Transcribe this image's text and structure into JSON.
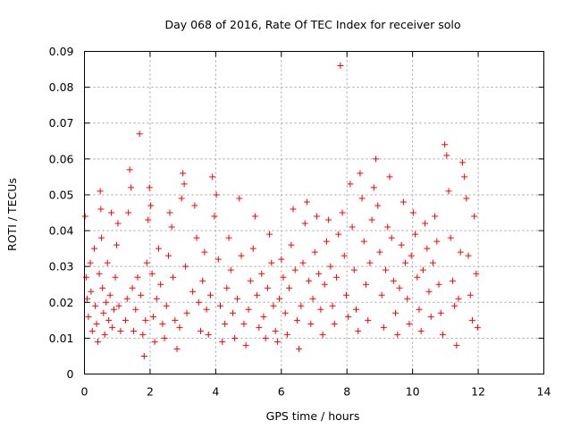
{
  "chart_data": {
    "type": "scatter",
    "title": "Day 068 of 2016, Rate Of TEC Index for receiver solo",
    "xlabel": "GPS time / hours",
    "ylabel": "ROTI / TECUs",
    "xlim": [
      0,
      14
    ],
    "ylim": [
      0,
      0.09
    ],
    "xticks": [
      "0",
      "2",
      "4",
      "6",
      "8",
      "10",
      "12",
      "14"
    ],
    "yticks": [
      "0",
      "0.01",
      "0.02",
      "0.03",
      "0.04",
      "0.05",
      "0.06",
      "0.07",
      "0.08",
      "0.09"
    ],
    "grid": true,
    "marker": "+",
    "marker_color": "#ff0000",
    "series": [
      {
        "name": "ROTI",
        "points": [
          [
            0.02,
            0.044
          ],
          [
            0.05,
            0.027
          ],
          [
            0.08,
            0.021
          ],
          [
            0.12,
            0.016
          ],
          [
            0.18,
            0.031
          ],
          [
            0.2,
            0.023
          ],
          [
            0.24,
            0.012
          ],
          [
            0.3,
            0.035
          ],
          [
            0.33,
            0.019
          ],
          [
            0.37,
            0.014
          ],
          [
            0.41,
            0.009
          ],
          [
            0.45,
            0.028
          ],
          [
            0.48,
            0.051
          ],
          [
            0.5,
            0.046
          ],
          [
            0.52,
            0.038
          ],
          [
            0.55,
            0.024
          ],
          [
            0.58,
            0.017
          ],
          [
            0.62,
            0.011
          ],
          [
            0.66,
            0.02
          ],
          [
            0.7,
            0.031
          ],
          [
            0.74,
            0.015
          ],
          [
            0.78,
            0.022
          ],
          [
            0.82,
            0.045
          ],
          [
            0.85,
            0.013
          ],
          [
            0.9,
            0.018
          ],
          [
            0.94,
            0.027
          ],
          [
            0.98,
            0.036
          ],
          [
            1.02,
            0.042
          ],
          [
            1.05,
            0.019
          ],
          [
            1.1,
            0.012
          ],
          [
            1.25,
            0.015
          ],
          [
            1.3,
            0.021
          ],
          [
            1.34,
            0.045
          ],
          [
            1.38,
            0.057
          ],
          [
            1.42,
            0.052
          ],
          [
            1.46,
            0.024
          ],
          [
            1.5,
            0.012
          ],
          [
            1.56,
            0.018
          ],
          [
            1.62,
            0.027
          ],
          [
            1.68,
            0.067
          ],
          [
            1.72,
            0.022
          ],
          [
            1.78,
            0.011
          ],
          [
            1.82,
            0.005
          ],
          [
            1.86,
            0.015
          ],
          [
            1.9,
            0.031
          ],
          [
            1.94,
            0.043
          ],
          [
            1.98,
            0.052
          ],
          [
            2.02,
            0.047
          ],
          [
            2.06,
            0.028
          ],
          [
            2.1,
            0.016
          ],
          [
            2.14,
            0.009
          ],
          [
            2.2,
            0.021
          ],
          [
            2.26,
            0.035
          ],
          [
            2.32,
            0.025
          ],
          [
            2.38,
            0.014
          ],
          [
            2.44,
            0.01
          ],
          [
            2.5,
            0.019
          ],
          [
            2.56,
            0.033
          ],
          [
            2.6,
            0.045
          ],
          [
            2.66,
            0.041
          ],
          [
            2.7,
            0.027
          ],
          [
            2.76,
            0.015
          ],
          [
            2.82,
            0.007
          ],
          [
            2.9,
            0.013
          ],
          [
            2.96,
            0.049
          ],
          [
            3.0,
            0.056
          ],
          [
            3.04,
            0.053
          ],
          [
            3.08,
            0.03
          ],
          [
            3.12,
            0.017
          ],
          [
            3.3,
            0.023
          ],
          [
            3.36,
            0.047
          ],
          [
            3.42,
            0.038
          ],
          [
            3.48,
            0.02
          ],
          [
            3.54,
            0.012
          ],
          [
            3.6,
            0.026
          ],
          [
            3.66,
            0.034
          ],
          [
            3.72,
            0.018
          ],
          [
            3.78,
            0.011
          ],
          [
            3.84,
            0.022
          ],
          [
            3.9,
            0.055
          ],
          [
            3.96,
            0.044
          ],
          [
            4.02,
            0.05
          ],
          [
            4.08,
            0.032
          ],
          [
            4.14,
            0.019
          ],
          [
            4.2,
            0.009
          ],
          [
            4.28,
            0.014
          ],
          [
            4.34,
            0.024
          ],
          [
            4.4,
            0.038
          ],
          [
            4.46,
            0.029
          ],
          [
            4.52,
            0.017
          ],
          [
            4.58,
            0.01
          ],
          [
            4.66,
            0.021
          ],
          [
            4.72,
            0.049
          ],
          [
            4.78,
            0.033
          ],
          [
            4.86,
            0.014
          ],
          [
            4.92,
            0.008
          ],
          [
            5.0,
            0.018
          ],
          [
            5.06,
            0.026
          ],
          [
            5.14,
            0.035
          ],
          [
            5.2,
            0.044
          ],
          [
            5.26,
            0.022
          ],
          [
            5.32,
            0.013
          ],
          [
            5.4,
            0.028
          ],
          [
            5.46,
            0.016
          ],
          [
            5.52,
            0.01
          ],
          [
            5.58,
            0.024
          ],
          [
            5.64,
            0.039
          ],
          [
            5.7,
            0.031
          ],
          [
            5.76,
            0.019
          ],
          [
            5.82,
            0.012
          ],
          [
            5.88,
            0.009
          ],
          [
            5.94,
            0.021
          ],
          [
            6.0,
            0.032
          ],
          [
            6.06,
            0.027
          ],
          [
            6.12,
            0.017
          ],
          [
            6.18,
            0.011
          ],
          [
            6.24,
            0.024
          ],
          [
            6.3,
            0.036
          ],
          [
            6.36,
            0.046
          ],
          [
            6.42,
            0.029
          ],
          [
            6.48,
            0.015
          ],
          [
            6.54,
            0.007
          ],
          [
            6.6,
            0.019
          ],
          [
            6.66,
            0.031
          ],
          [
            6.72,
            0.042
          ],
          [
            6.78,
            0.048
          ],
          [
            6.84,
            0.026
          ],
          [
            6.9,
            0.014
          ],
          [
            6.96,
            0.021
          ],
          [
            7.02,
            0.034
          ],
          [
            7.08,
            0.044
          ],
          [
            7.14,
            0.028
          ],
          [
            7.2,
            0.018
          ],
          [
            7.26,
            0.011
          ],
          [
            7.32,
            0.025
          ],
          [
            7.38,
            0.037
          ],
          [
            7.44,
            0.043
          ],
          [
            7.5,
            0.03
          ],
          [
            7.56,
            0.019
          ],
          [
            7.62,
            0.014
          ],
          [
            7.68,
            0.027
          ],
          [
            7.74,
            0.039
          ],
          [
            7.8,
            0.086
          ],
          [
            7.86,
            0.045
          ],
          [
            7.92,
            0.033
          ],
          [
            7.98,
            0.022
          ],
          [
            8.04,
            0.016
          ],
          [
            8.1,
            0.053
          ],
          [
            8.16,
            0.041
          ],
          [
            8.22,
            0.029
          ],
          [
            8.28,
            0.018
          ],
          [
            8.34,
            0.012
          ],
          [
            8.4,
            0.056
          ],
          [
            8.46,
            0.049
          ],
          [
            8.52,
            0.037
          ],
          [
            8.58,
            0.025
          ],
          [
            8.64,
            0.015
          ],
          [
            8.7,
            0.031
          ],
          [
            8.76,
            0.043
          ],
          [
            8.82,
            0.052
          ],
          [
            8.88,
            0.06
          ],
          [
            8.94,
            0.047
          ],
          [
            9.0,
            0.034
          ],
          [
            9.06,
            0.022
          ],
          [
            9.12,
            0.013
          ],
          [
            9.18,
            0.029
          ],
          [
            9.24,
            0.041
          ],
          [
            9.3,
            0.055
          ],
          [
            9.36,
            0.038
          ],
          [
            9.42,
            0.026
          ],
          [
            9.48,
            0.017
          ],
          [
            9.54,
            0.011
          ],
          [
            9.6,
            0.024
          ],
          [
            9.66,
            0.036
          ],
          [
            9.72,
            0.048
          ],
          [
            9.78,
            0.031
          ],
          [
            9.84,
            0.021
          ],
          [
            9.9,
            0.014
          ],
          [
            9.96,
            0.033
          ],
          [
            10.02,
            0.045
          ],
          [
            10.08,
            0.039
          ],
          [
            10.14,
            0.027
          ],
          [
            10.2,
            0.018
          ],
          [
            10.26,
            0.012
          ],
          [
            10.32,
            0.029
          ],
          [
            10.38,
            0.042
          ],
          [
            10.44,
            0.035
          ],
          [
            10.5,
            0.023
          ],
          [
            10.56,
            0.016
          ],
          [
            10.62,
            0.031
          ],
          [
            10.68,
            0.044
          ],
          [
            10.74,
            0.037
          ],
          [
            10.8,
            0.025
          ],
          [
            10.86,
            0.017
          ],
          [
            10.92,
            0.011
          ],
          [
            10.98,
            0.064
          ],
          [
            11.04,
            0.061
          ],
          [
            11.1,
            0.051
          ],
          [
            11.16,
            0.038
          ],
          [
            11.22,
            0.026
          ],
          [
            11.28,
            0.019
          ],
          [
            11.34,
            0.008
          ],
          [
            11.4,
            0.021
          ],
          [
            11.46,
            0.034
          ],
          [
            11.52,
            0.059
          ],
          [
            11.58,
            0.055
          ],
          [
            11.64,
            0.049
          ],
          [
            11.7,
            0.033
          ],
          [
            11.76,
            0.022
          ],
          [
            11.82,
            0.015
          ],
          [
            11.88,
            0.044
          ],
          [
            11.94,
            0.028
          ],
          [
            11.98,
            0.013
          ]
        ]
      }
    ]
  }
}
